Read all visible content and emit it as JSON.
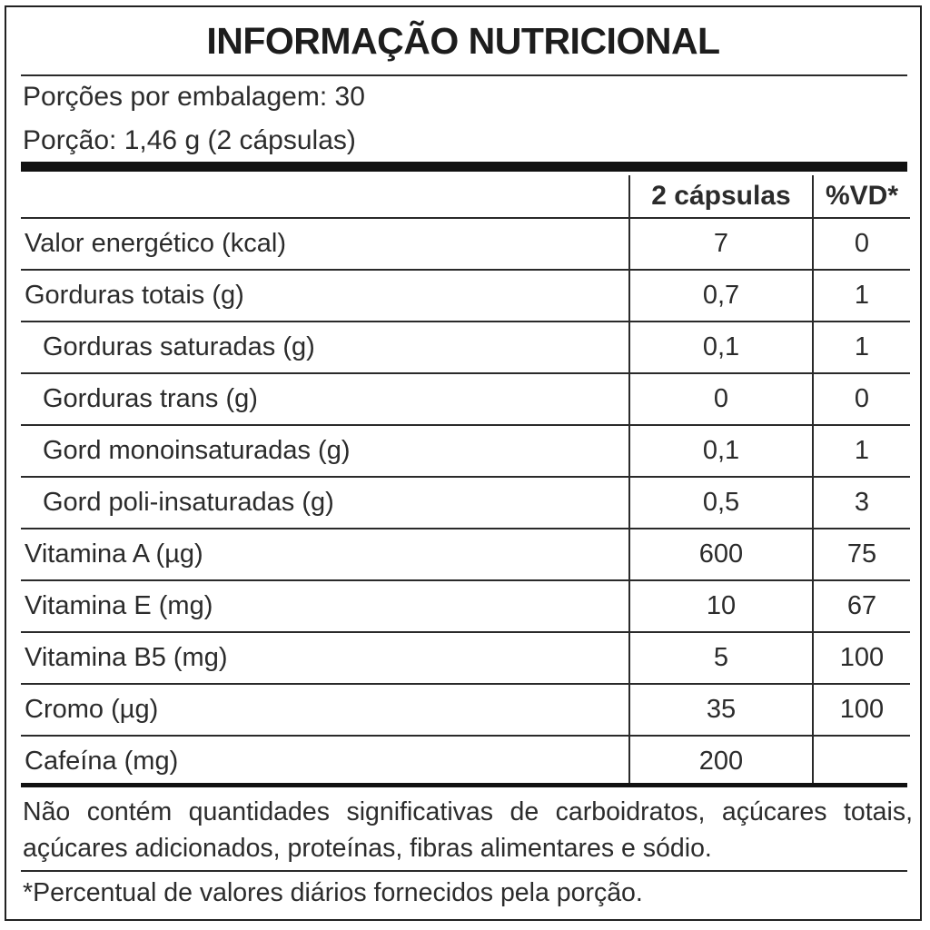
{
  "title": "INFORMAÇÃO NUTRICIONAL",
  "servings_per_package": "Porções por embalagem: 30",
  "serving_size": "Porção: 1,46 g (2 cápsulas)",
  "header": {
    "amount": "2 cápsulas",
    "dv": "%VD*"
  },
  "rows": [
    {
      "label": "Valor energético (kcal)",
      "amount": "7",
      "dv": "0"
    },
    {
      "label": "Gorduras totais (g)",
      "amount": "0,7",
      "dv": "1"
    },
    {
      "label": "Gorduras saturadas (g)",
      "amount": "0,1",
      "dv": "1"
    },
    {
      "label": "Gorduras trans (g)",
      "amount": "0",
      "dv": "0"
    },
    {
      "label": "Gord monoinsaturadas (g)",
      "amount": "0,1",
      "dv": "1"
    },
    {
      "label": "Gord poli-insaturadas (g)",
      "amount": "0,5",
      "dv": "3"
    },
    {
      "label": "Vitamina A (µg)",
      "amount": "600",
      "dv": "75"
    },
    {
      "label": "Vitamina E (mg)",
      "amount": "10",
      "dv": "67"
    },
    {
      "label": "Vitamina B5 (mg)",
      "amount": "5",
      "dv": "100"
    },
    {
      "label": "Cromo (µg)",
      "amount": "35",
      "dv": "100"
    },
    {
      "label": "Cafeína (mg)",
      "amount": "200",
      "dv": ""
    }
  ],
  "note_not_significant": "Não contém quantidades significativas de carboidratos, açúcares totais, açúcares adicionados, proteínas, fibras alimentares e sódio.",
  "note_dv": "*Percentual de valores diários fornecidos pela porção."
}
